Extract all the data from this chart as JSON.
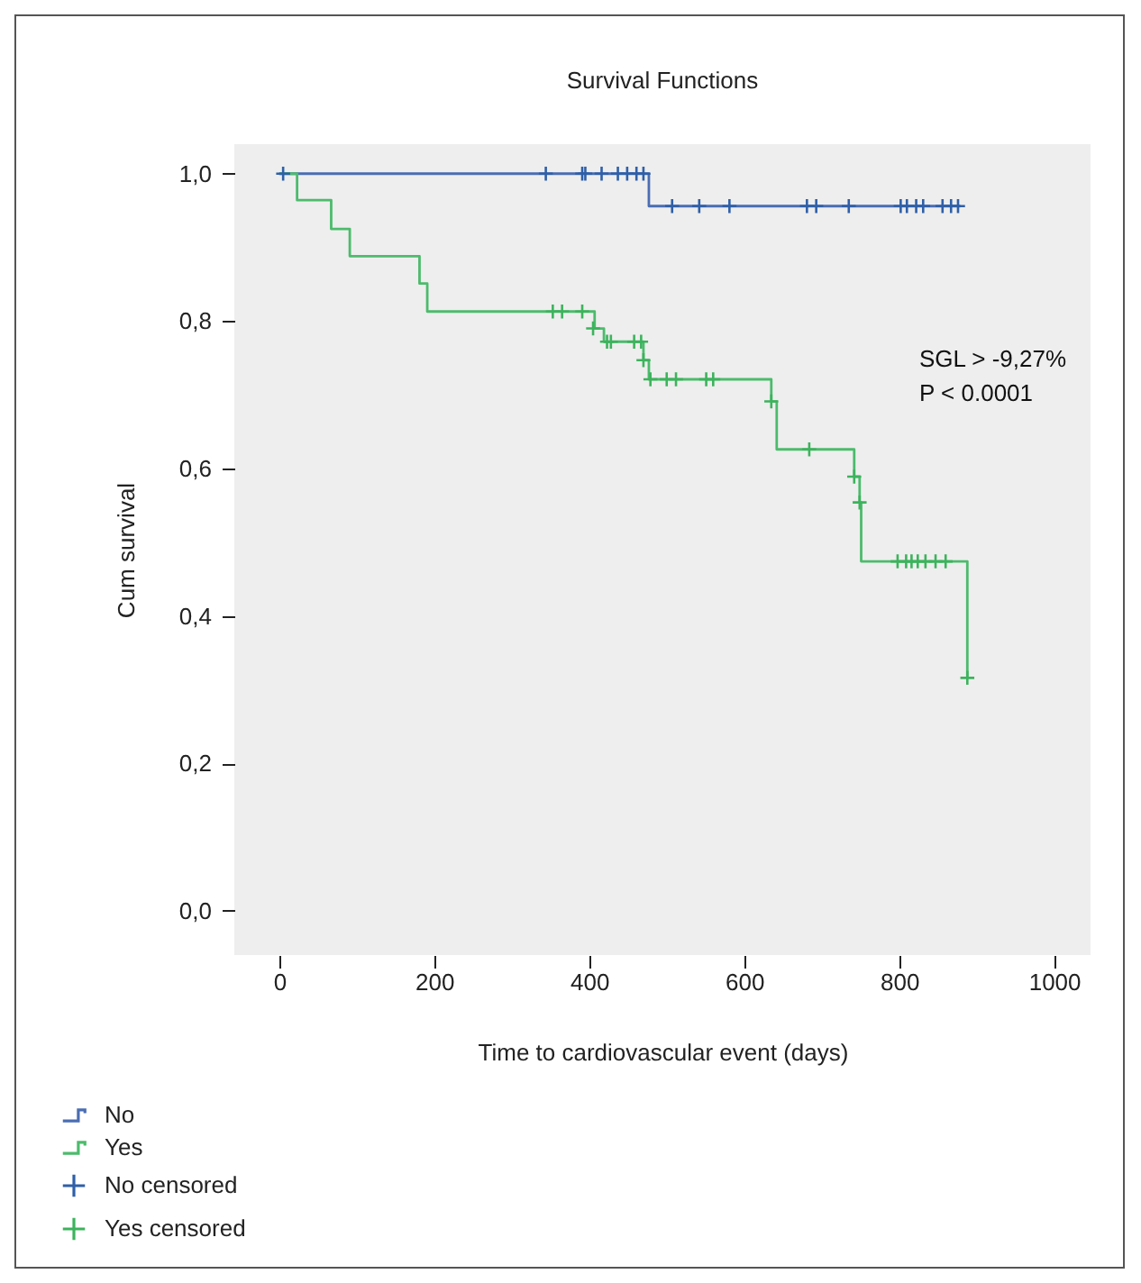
{
  "chart_data": {
    "type": "step",
    "title": "Survival Functions",
    "xlabel": "Time to cardiovascular event (days)",
    "ylabel": "Cum survival",
    "xlim": [
      -58,
      1047
    ],
    "xticks": [
      0,
      200,
      400,
      600,
      800,
      1000
    ],
    "ylim": [
      -0.06,
      1.04
    ],
    "yticks": [
      {
        "value": 0,
        "label": "0,0"
      },
      {
        "value": 0.2,
        "label": "0,2"
      },
      {
        "value": 0.4,
        "label": "0,4"
      },
      {
        "value": 0.6,
        "label": "0,6"
      },
      {
        "value": 0.8,
        "label": "0,8"
      },
      {
        "value": 1,
        "label": "1,0"
      }
    ],
    "grid": false,
    "legend": "bottom",
    "annotations": [
      "SGL > -9,27%",
      "P < 0.0001"
    ],
    "series": [
      {
        "name": "No",
        "color": "#4a6db3",
        "x": [
          0,
          477,
          879
        ],
        "values": [
          1,
          0.956,
          0.956
        ]
      },
      {
        "name": "Yes",
        "color": "#4cbb6c",
        "x": [
          0,
          23,
          67,
          91,
          181,
          191,
          407,
          419,
          470,
          477,
          635,
          642,
          742,
          749,
          751,
          888
        ],
        "values": [
          1,
          0.964,
          0.925,
          0.888,
          0.851,
          0.813,
          0.79,
          0.772,
          0.747,
          0.721,
          0.691,
          0.626,
          0.589,
          0.554,
          0.474,
          0.316
        ]
      },
      {
        "name": "No censored",
        "type": "scatter",
        "marker": "cross",
        "color": "#2f5fa8",
        "x": [
          5,
          344,
          391,
          395,
          416,
          437,
          449,
          461,
          470,
          507,
          542,
          581,
          681,
          693,
          735,
          802,
          810,
          822,
          831,
          856,
          867,
          876
        ],
        "values": [
          1,
          1,
          1,
          1,
          1,
          1,
          1,
          1,
          1,
          0.956,
          0.956,
          0.956,
          0.956,
          0.956,
          0.956,
          0.956,
          0.956,
          0.956,
          0.956,
          0.956,
          0.956,
          0.956
        ]
      },
      {
        "name": "Yes censored",
        "type": "scatter",
        "marker": "cross",
        "color": "#3cb35c",
        "x": [
          353,
          365,
          391,
          405,
          423,
          428,
          458,
          467,
          470,
          479,
          500,
          512,
          551,
          560,
          635,
          684,
          742,
          749,
          798,
          809,
          816,
          824,
          834,
          847,
          860,
          888
        ],
        "values": [
          0.813,
          0.813,
          0.813,
          0.79,
          0.772,
          0.772,
          0.772,
          0.772,
          0.747,
          0.721,
          0.721,
          0.721,
          0.721,
          0.721,
          0.691,
          0.626,
          0.589,
          0.554,
          0.474,
          0.474,
          0.474,
          0.474,
          0.474,
          0.474,
          0.474,
          0.316
        ]
      }
    ]
  }
}
